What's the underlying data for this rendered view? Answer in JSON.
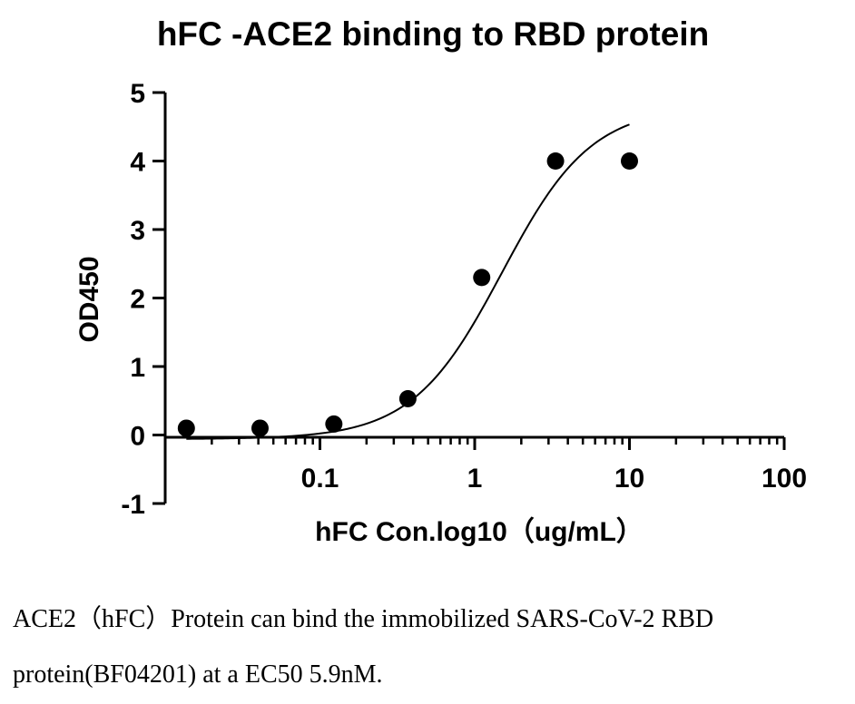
{
  "chart_data": {
    "type": "scatter",
    "title": "hFC -ACE2 binding to RBD protein",
    "xlabel": "hFC Con.log10（ug/mL）",
    "ylabel": "OD450",
    "x_scale": "log",
    "xlim": [
      0.01,
      100
    ],
    "ylim": [
      -1,
      5
    ],
    "x_ticks": [
      0.1,
      1,
      10,
      100
    ],
    "x_tick_labels": [
      "0.1",
      "1",
      "10",
      "100"
    ],
    "y_ticks": [
      -1,
      0,
      1,
      2,
      3,
      4,
      5
    ],
    "y_tick_labels": [
      "-1",
      "0",
      "1",
      "2",
      "3",
      "4",
      "5"
    ],
    "grid": false,
    "series": [
      {
        "points": [
          {
            "x": 0.0137,
            "y": 0.1
          },
          {
            "x": 0.041,
            "y": 0.1
          },
          {
            "x": 0.123,
            "y": 0.16
          },
          {
            "x": 0.37,
            "y": 0.53
          },
          {
            "x": 1.11,
            "y": 2.3
          },
          {
            "x": 3.33,
            "y": 4.0
          },
          {
            "x": 10,
            "y": 4.0
          }
        ]
      }
    ],
    "fit_curve": {
      "model": "4PL",
      "bottom": -0.06,
      "top": 4.8,
      "ec50": 1.5,
      "hill": 1.5,
      "x_range": [
        0.0137,
        10
      ]
    }
  },
  "caption": {
    "line1": "ACE2（hFC）Protein can bind the immobilized SARS-CoV-2 RBD",
    "line2": "protein(BF04201) at a EC50 5.9nM."
  }
}
